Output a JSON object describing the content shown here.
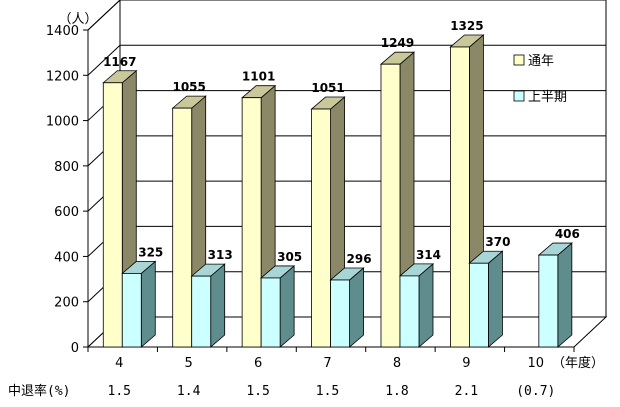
{
  "chart_data": {
    "type": "bar",
    "y_unit": "（人）",
    "x_unit": "（年度）",
    "categories": [
      "4",
      "5",
      "6",
      "7",
      "8",
      "9",
      "10"
    ],
    "series": [
      {
        "name": "通年",
        "values": [
          1167,
          1055,
          1101,
          1051,
          1249,
          1325,
          null
        ],
        "color_front": "#ffffcc",
        "color_side": "#8a8866",
        "color_top": "#c8c89a"
      },
      {
        "name": "上半期",
        "values": [
          325,
          313,
          305,
          296,
          314,
          370,
          406
        ],
        "color_front": "#ccffff",
        "color_side": "#5f8c8c",
        "color_top": "#a8d6d6"
      }
    ],
    "ylim": [
      0,
      1400
    ],
    "yticks": [
      0,
      200,
      400,
      600,
      800,
      1000,
      1200,
      1400
    ],
    "grid": true,
    "legend_position": "right",
    "dropout_rate": {
      "label": "中退率(%)",
      "values": [
        "1.5",
        "1.4",
        "1.5",
        "1.5",
        "1.8",
        "2.1",
        "(0.7)"
      ]
    }
  }
}
